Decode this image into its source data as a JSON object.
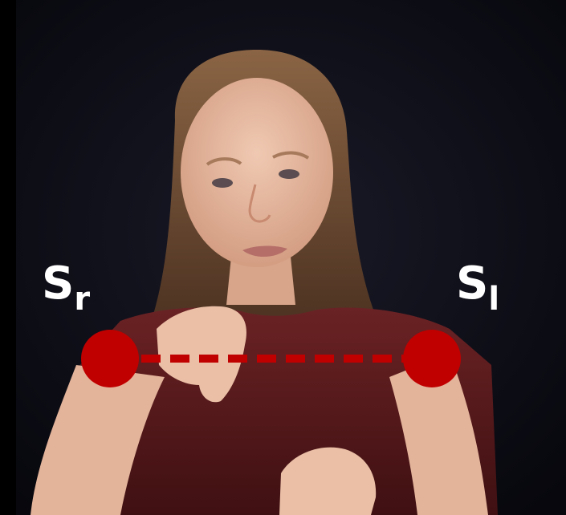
{
  "labels": {
    "left": {
      "main": "S",
      "sub": "r"
    },
    "right": {
      "main": "S",
      "sub": "l"
    }
  },
  "colors": {
    "marker": "#c00000",
    "background": "#0c0c18",
    "shirt": "#5a1a1c",
    "skin": "#e8b9a0",
    "hair": "#7a5638",
    "text": "#ffffff"
  }
}
